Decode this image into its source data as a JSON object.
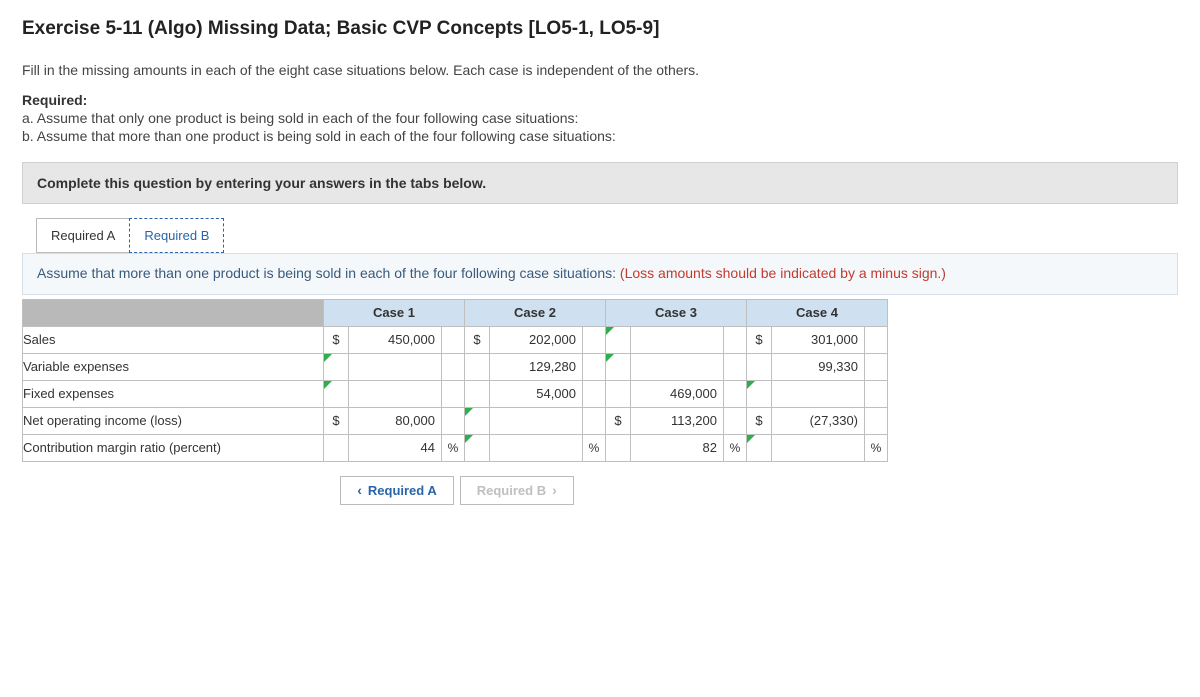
{
  "title": "Exercise 5-11 (Algo) Missing Data; Basic CVP Concepts [LO5-1, LO5-9]",
  "intro": "Fill in the missing amounts in each of the eight case situations below. Each case is independent of the others.",
  "required_label": "Required:",
  "req_a": "a. Assume that only one product is being sold in each of the four following case situations:",
  "req_b": "b. Assume that more than one product is being sold in each of the four following case situations:",
  "instruction": "Complete this question by entering your answers in the tabs below.",
  "tabs": {
    "a": "Required A",
    "b": "Required B"
  },
  "subprompt_main": "Assume that more than one product is being sold in each of the four following case situations: ",
  "subprompt_warn": "(Loss amounts should be indicated by a minus sign.)",
  "col_heads": [
    "Case 1",
    "Case 2",
    "Case 3",
    "Case 4"
  ],
  "rows": {
    "sales": "Sales",
    "varexp": "Variable expenses",
    "fixed": "Fixed expenses",
    "noi": "Net operating income (loss)",
    "cmr": "Contribution margin ratio (percent)"
  },
  "cells": {
    "sales": {
      "c1": {
        "sym": "$",
        "val": "450,000",
        "unit": ""
      },
      "c2": {
        "sym": "$",
        "val": "202,000",
        "unit": ""
      },
      "c3": {
        "sym": "",
        "val": "",
        "unit": ""
      },
      "c4": {
        "sym": "$",
        "val": "301,000",
        "unit": ""
      }
    },
    "varexp": {
      "c1": {
        "sym": "",
        "val": "",
        "unit": ""
      },
      "c2": {
        "sym": "",
        "val": "129,280",
        "unit": ""
      },
      "c3": {
        "sym": "",
        "val": "",
        "unit": ""
      },
      "c4": {
        "sym": "",
        "val": "99,330",
        "unit": ""
      }
    },
    "fixed": {
      "c1": {
        "sym": "",
        "val": "",
        "unit": ""
      },
      "c2": {
        "sym": "",
        "val": "54,000",
        "unit": ""
      },
      "c3": {
        "sym": "",
        "val": "469,000",
        "unit": ""
      },
      "c4": {
        "sym": "",
        "val": "",
        "unit": ""
      }
    },
    "noi": {
      "c1": {
        "sym": "$",
        "val": "80,000",
        "unit": ""
      },
      "c2": {
        "sym": "",
        "val": "",
        "unit": ""
      },
      "c3": {
        "sym": "$",
        "val": "113,200",
        "unit": ""
      },
      "c4": {
        "sym": "$",
        "val": "(27,330)",
        "unit": ""
      }
    },
    "cmr": {
      "c1": {
        "sym": "",
        "val": "44",
        "unit": "%"
      },
      "c2": {
        "sym": "",
        "val": "",
        "unit": "%"
      },
      "c3": {
        "sym": "",
        "val": "82",
        "unit": "%"
      },
      "c4": {
        "sym": "",
        "val": "",
        "unit": "%"
      }
    }
  },
  "nav": {
    "prev": "Required A",
    "next": "Required B"
  }
}
